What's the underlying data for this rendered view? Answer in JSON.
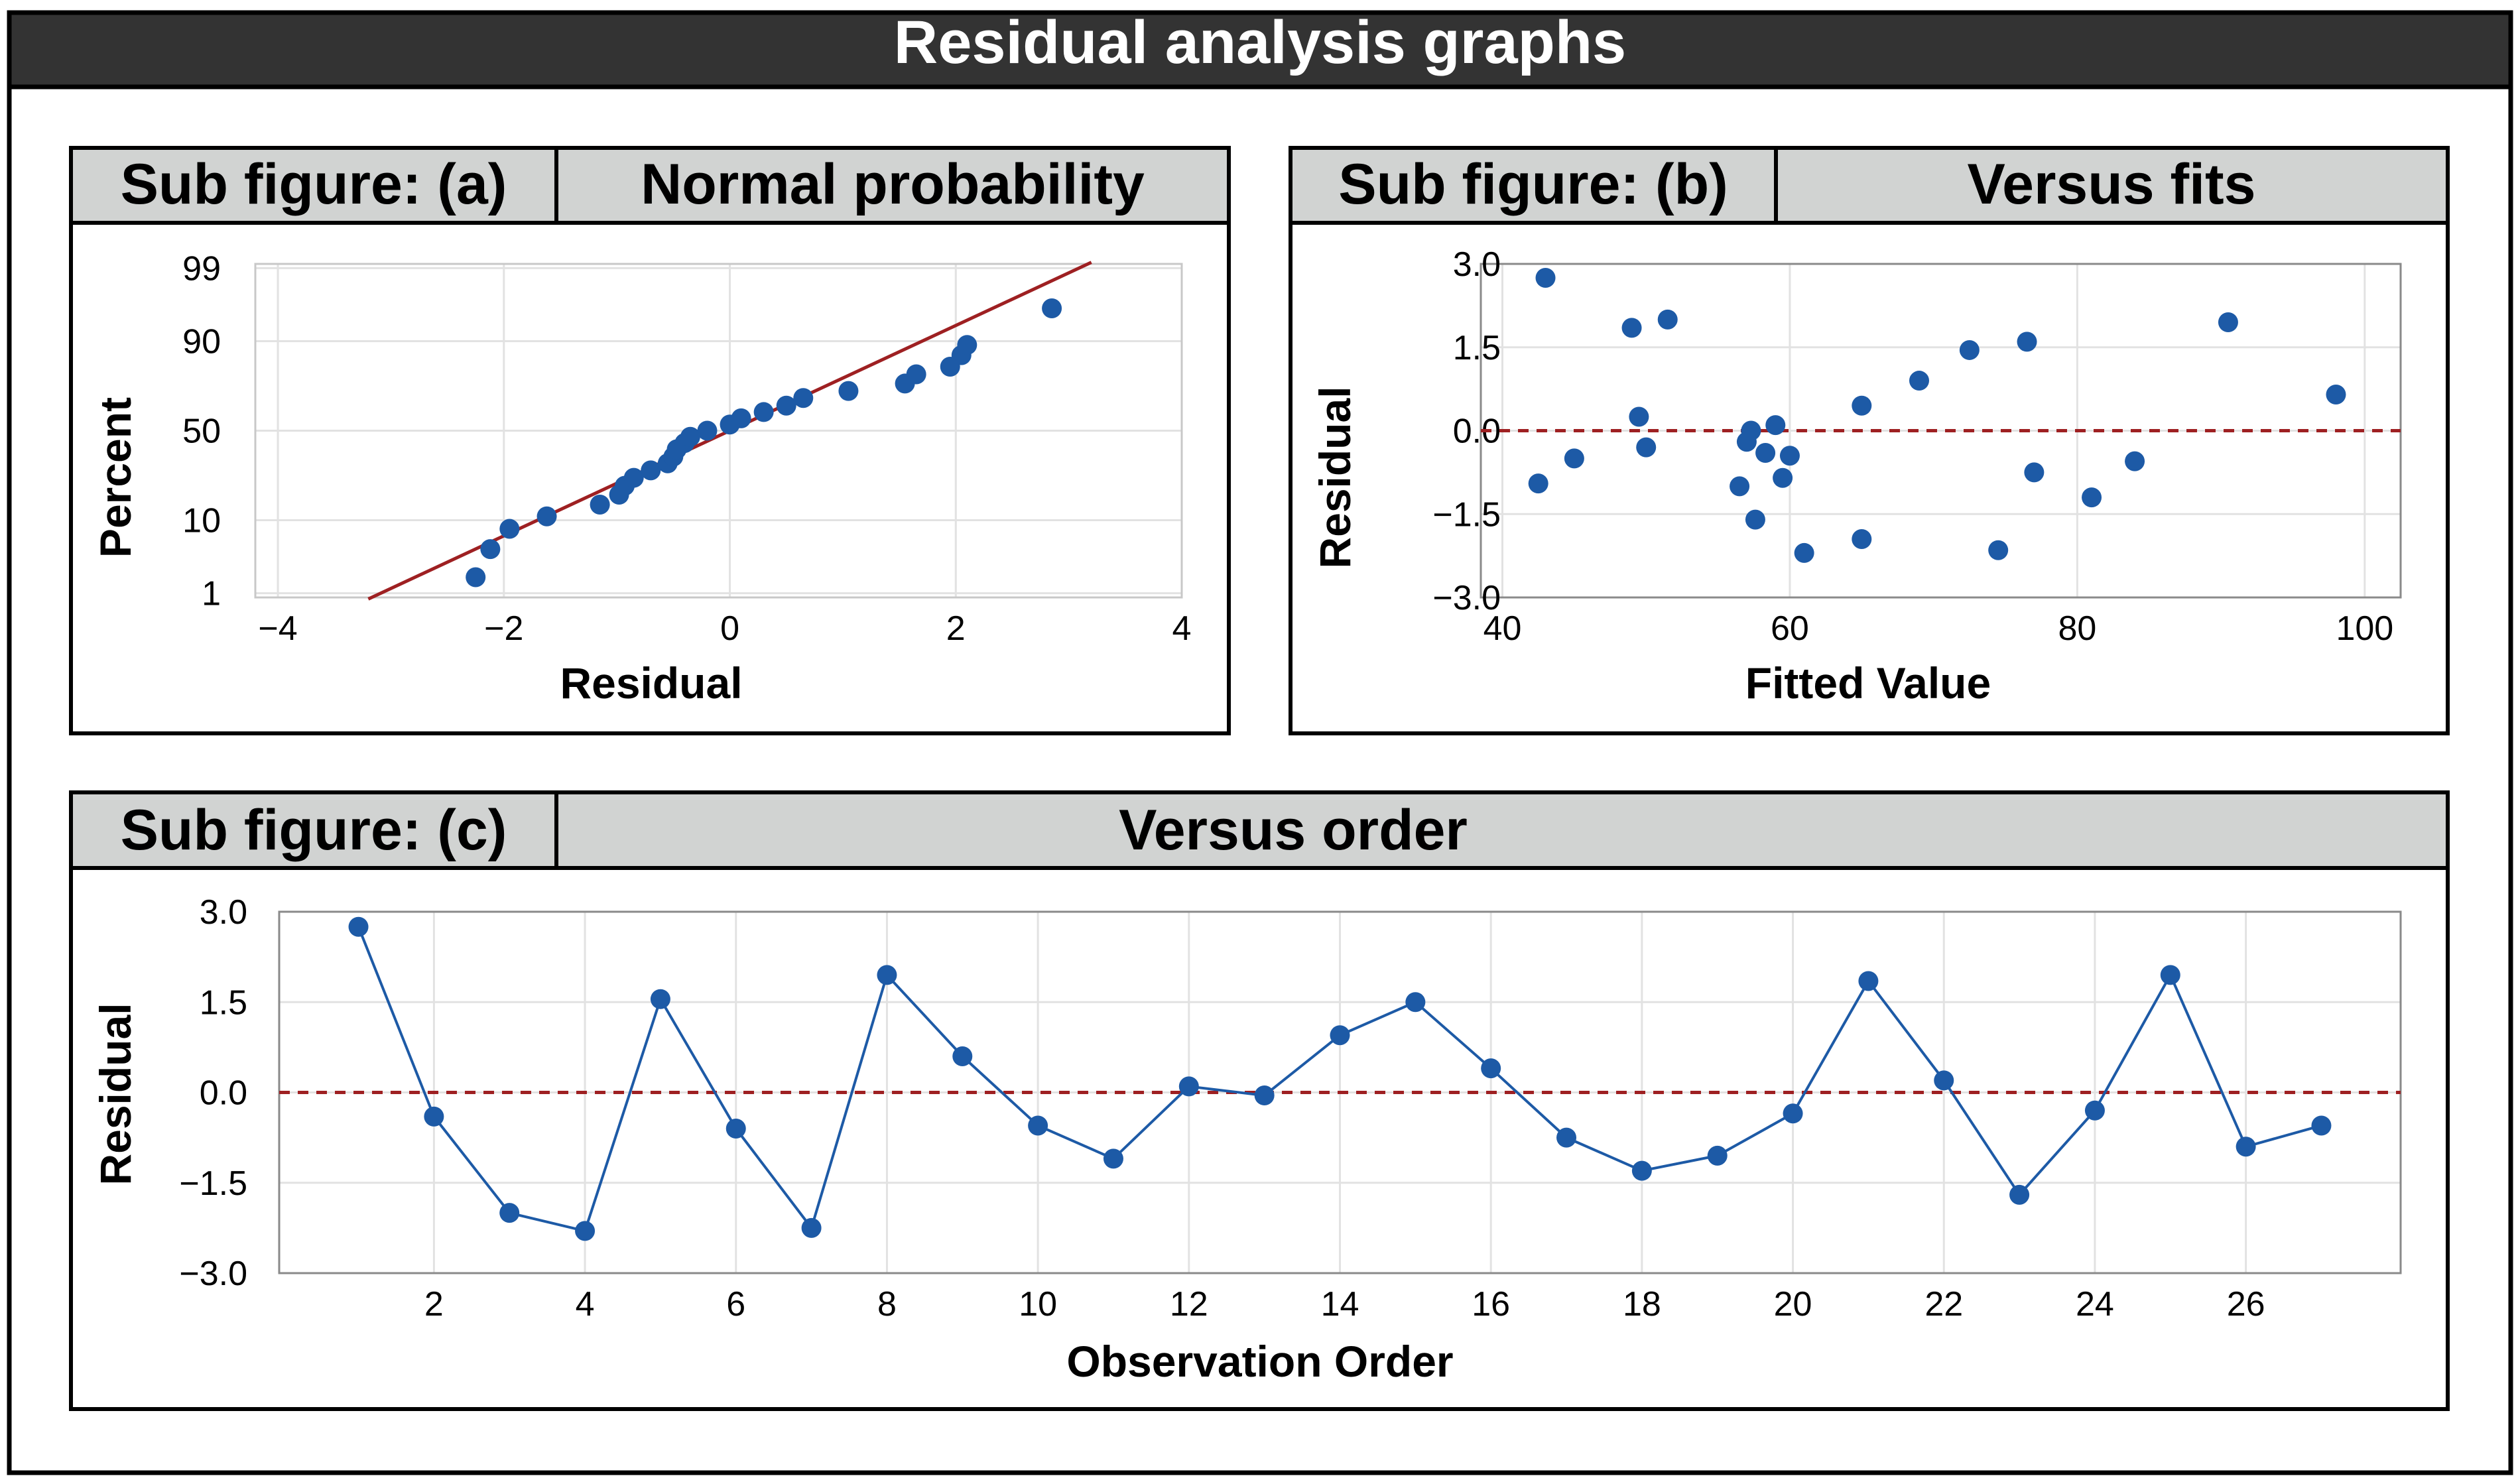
{
  "title": "Residual analysis graphs",
  "colors": {
    "banner": "#333333",
    "panel_header": "#d1d3d2",
    "point": "#1d5aa6",
    "line": "#1d5aa6",
    "fit_line": "#9e2022",
    "zero_line": "#9e2022",
    "grid": "#e2e2e2"
  },
  "chart_data": [
    {
      "id": "a",
      "type": "scatter",
      "subfigure_label": "Sub figure: (a)",
      "title": "Normal probability",
      "xlabel": "Residual",
      "ylabel": "Percent",
      "xlim": [
        -4.2,
        4.0
      ],
      "x_ticks": [
        -4,
        -2,
        0,
        2,
        4
      ],
      "x_tick_labels": [
        "−4",
        "−2",
        "0",
        "2",
        "4"
      ],
      "y_ticks": [
        1,
        10,
        50,
        90,
        99
      ],
      "y_tick_labels": [
        "1",
        "10",
        "50",
        "90",
        "99"
      ],
      "grid": true,
      "fit_line": {
        "x": [
          -3.2,
          3.2
        ],
        "y": [
          0.8,
          99.2
        ]
      },
      "points": {
        "x": [
          -2.25,
          -2.12,
          -1.95,
          -1.62,
          -1.15,
          -0.98,
          -0.93,
          -0.85,
          -0.7,
          -0.55,
          -0.5,
          -0.47,
          -0.4,
          -0.35,
          -0.2,
          0.0,
          0.1,
          0.3,
          0.5,
          0.65,
          1.05,
          1.55,
          1.65,
          1.95,
          2.05,
          2.1,
          2.85
        ],
        "y": [
          1.8,
          4.5,
          8.0,
          11.0,
          14.5,
          18.0,
          21.5,
          25.0,
          28.5,
          32.0,
          35.5,
          39.5,
          43.0,
          46.5,
          50.0,
          53.5,
          57.0,
          60.5,
          64.0,
          68.0,
          71.5,
          75.0,
          79.0,
          82.0,
          86.0,
          89.0,
          96.0
        ]
      }
    },
    {
      "id": "b",
      "type": "scatter",
      "subfigure_label": "Sub figure: (b)",
      "title": "Versus fits",
      "xlabel": "Fitted Value",
      "ylabel": "Residual",
      "xlim": [
        38.5,
        102.5
      ],
      "ylim": [
        -3.0,
        3.0
      ],
      "x_ticks": [
        40,
        60,
        80,
        100
      ],
      "x_tick_labels": [
        "40",
        "60",
        "80",
        "100"
      ],
      "y_ticks": [
        3.0,
        1.5,
        0.0,
        -1.5,
        -3.0
      ],
      "y_tick_labels": [
        "3.0",
        "1.5",
        "0.0",
        "−1.5",
        "−3.0"
      ],
      "grid": true,
      "reference_line": 0.0,
      "points": {
        "x": [
          42.5,
          43.0,
          45.0,
          49.0,
          49.5,
          50.0,
          51.5,
          56.5,
          57.0,
          57.3,
          57.6,
          58.3,
          59.0,
          59.5,
          60.0,
          61.0,
          65.0,
          65.0,
          69.0,
          72.5,
          74.5,
          76.5,
          77.0,
          81.0,
          84.0,
          90.5,
          98.0
        ],
        "y": [
          -0.95,
          2.75,
          -0.5,
          1.85,
          0.25,
          -0.3,
          2.0,
          -1.0,
          -0.2,
          0.0,
          -1.6,
          -0.4,
          0.1,
          -0.85,
          -0.45,
          -2.2,
          0.45,
          -1.95,
          0.9,
          1.45,
          -2.15,
          1.6,
          -0.75,
          -1.2,
          -0.55,
          1.95,
          0.65
        ]
      }
    },
    {
      "id": "c",
      "type": "line",
      "subfigure_label": "Sub figure: (c)",
      "title": "Versus order",
      "xlabel": "Observation Order",
      "ylabel": "Residual",
      "xlim": [
        -0.05,
        28.05
      ],
      "ylim": [
        -3.0,
        3.0
      ],
      "x_ticks": [
        2,
        4,
        6,
        8,
        10,
        12,
        14,
        16,
        18,
        20,
        22,
        24,
        26
      ],
      "x_tick_labels": [
        "2",
        "4",
        "6",
        "8",
        "10",
        "12",
        "14",
        "16",
        "18",
        "20",
        "22",
        "24",
        "26"
      ],
      "y_ticks": [
        3.0,
        1.5,
        0.0,
        -1.5,
        -3.0
      ],
      "y_tick_labels": [
        "3.0",
        "1.5",
        "0.0",
        "−1.5",
        "−3.0"
      ],
      "grid": true,
      "reference_line": 0.0,
      "points": {
        "x": [
          1,
          2,
          3,
          4,
          5,
          6,
          7,
          8,
          9,
          10,
          11,
          12,
          13,
          14,
          15,
          16,
          17,
          18,
          19,
          20,
          21,
          22,
          23,
          24,
          25,
          26,
          27
        ],
        "y": [
          2.75,
          -0.4,
          -2.0,
          -2.3,
          1.55,
          -0.6,
          -2.25,
          1.95,
          0.6,
          -0.55,
          -1.1,
          0.1,
          -0.05,
          0.95,
          1.5,
          0.4,
          -0.75,
          -1.3,
          -1.05,
          -0.35,
          1.85,
          0.2,
          -1.7,
          -0.3,
          1.95,
          -0.9,
          -0.55
        ]
      }
    }
  ]
}
